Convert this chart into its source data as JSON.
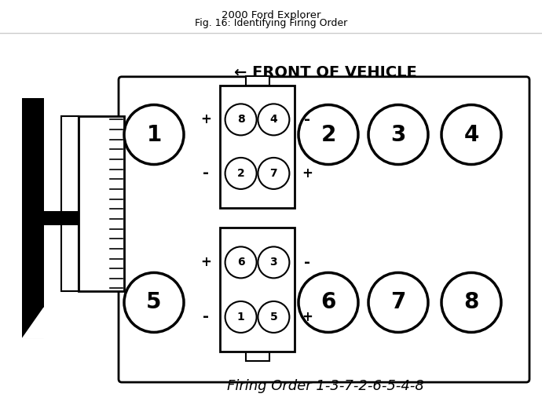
{
  "title_line1": "2000 Ford Explorer",
  "title_line2": "Fig. 16: Identifying Firing Order",
  "front_label": "← FRONT OF VEHICLE",
  "firing_order_label": "Firing Order 1-3-7-2-6-5-4-8",
  "bg_color": "#ffffff",
  "figsize": [
    6.9,
    5.11
  ],
  "dpi": 100
}
